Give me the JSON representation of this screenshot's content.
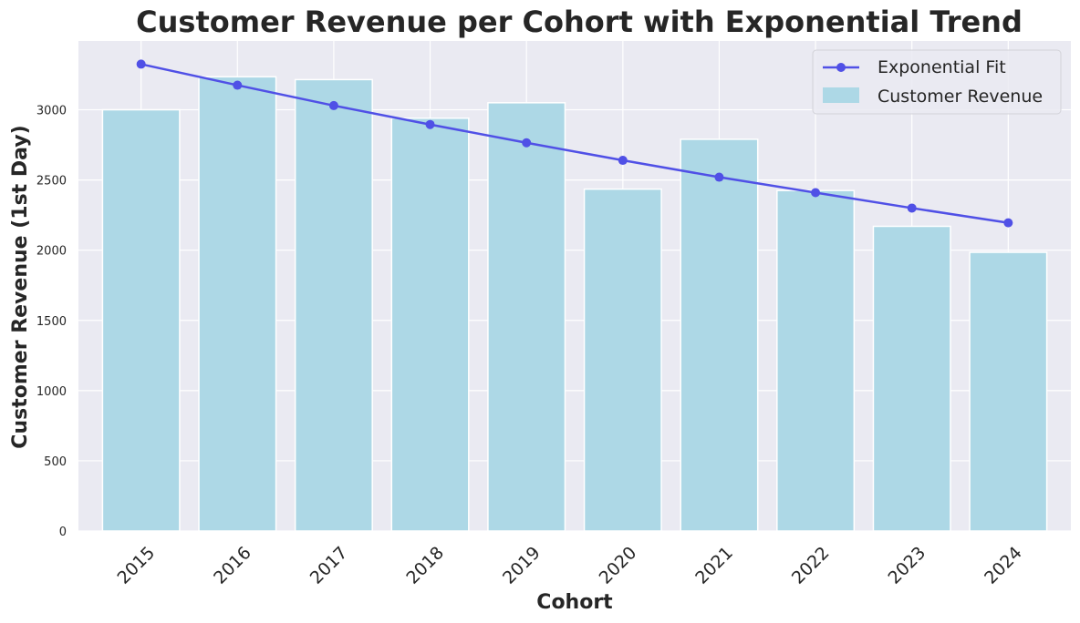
{
  "chart_data": {
    "type": "bar",
    "title": "Customer Revenue per Cohort with Exponential Trend",
    "xlabel": "Cohort",
    "ylabel": "Customer Revenue (1st Day)",
    "categories": [
      "2015",
      "2016",
      "2017",
      "2018",
      "2019",
      "2020",
      "2021",
      "2022",
      "2023",
      "2024"
    ],
    "series": [
      {
        "name": "Customer Revenue",
        "type": "bar",
        "color": "#add8e6",
        "values": [
          3000,
          3235,
          3215,
          2940,
          3050,
          2435,
          2790,
          2425,
          2170,
          1985
        ]
      },
      {
        "name": "Exponential Fit",
        "type": "line",
        "color": "#5050e6",
        "marker": "circle",
        "values": [
          3325,
          3175,
          3030,
          2895,
          2765,
          2640,
          2520,
          2410,
          2300,
          2195
        ]
      }
    ],
    "ylim": [
      0,
      3490
    ],
    "yticks": [
      0,
      500,
      1000,
      1500,
      2000,
      2500,
      3000
    ],
    "ytick_labels": [
      "0",
      "500",
      "1000",
      "1500",
      "2000",
      "2500",
      "3000"
    ],
    "xtick_rotation": -45,
    "grid": true,
    "legend_position": "top-right",
    "background_color": "#eaeaf2",
    "grid_color": "#ffffff",
    "text_color": "#262626"
  }
}
